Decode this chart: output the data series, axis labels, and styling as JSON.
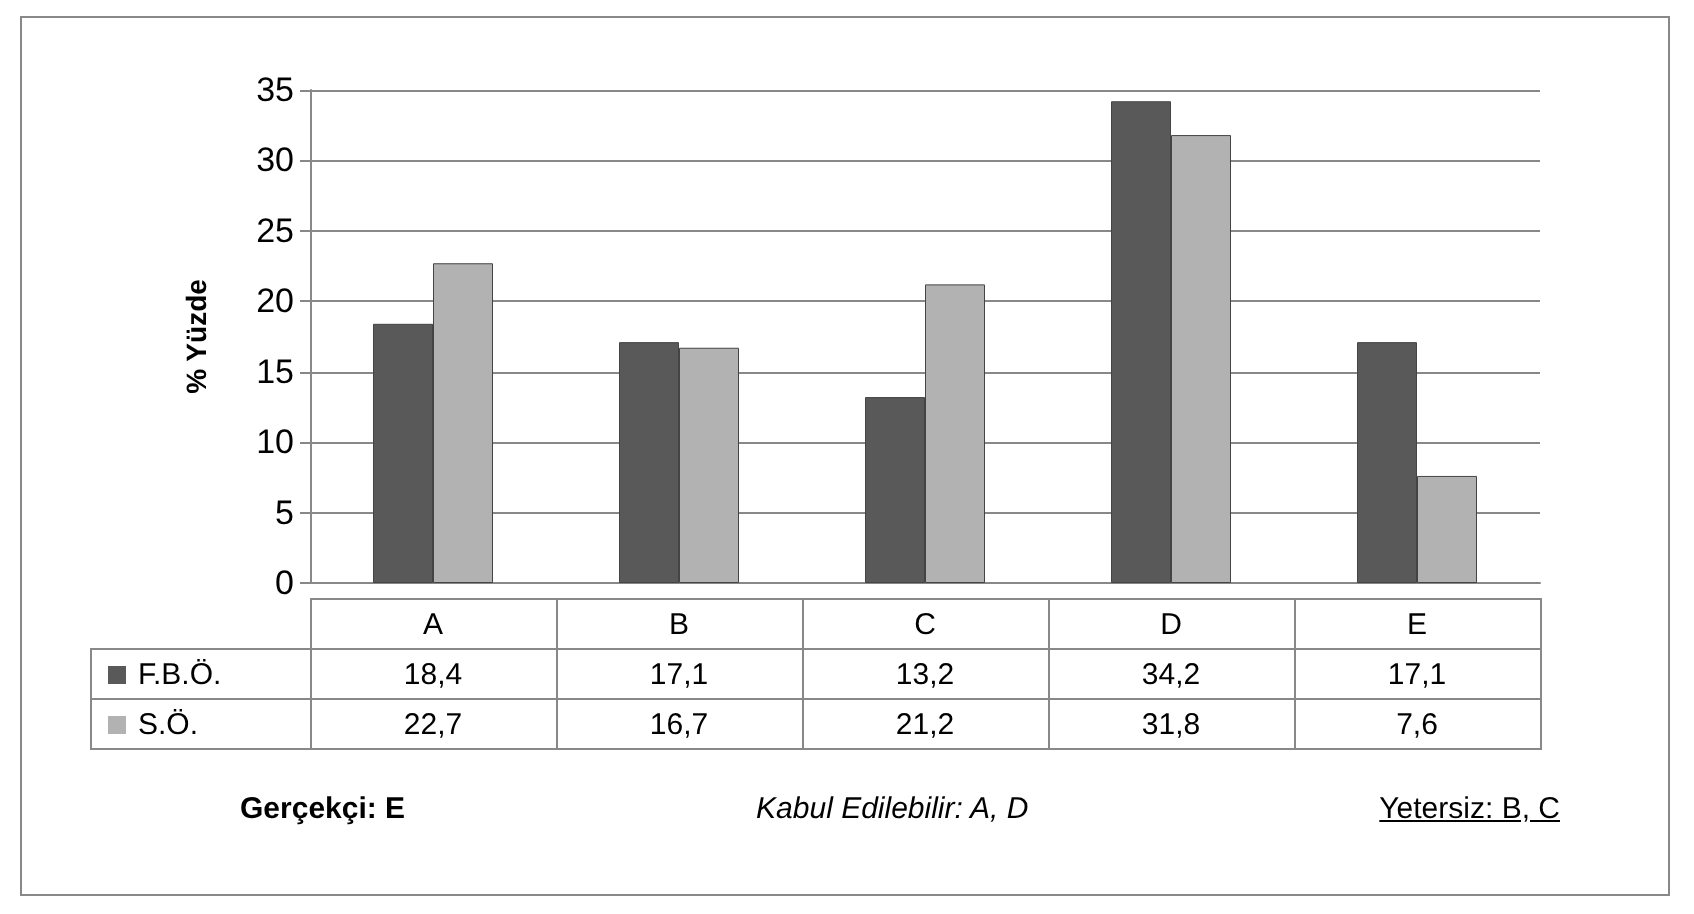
{
  "chart_data": {
    "type": "bar",
    "ylabel": "% Yüzde",
    "categories": [
      "A",
      "B",
      "C",
      "D",
      "E"
    ],
    "series": [
      {
        "name": "F.B.Ö.",
        "color": "#595959",
        "values": [
          18.4,
          17.1,
          13.2,
          34.2,
          17.1
        ],
        "value_labels": [
          "18,4",
          "17,1",
          "13,2",
          "34,2",
          "17,1"
        ]
      },
      {
        "name": "S.Ö.",
        "color": "#b2b2b2",
        "values": [
          22.7,
          16.7,
          21.2,
          31.8,
          7.6
        ],
        "value_labels": [
          "22,7",
          "16,7",
          "21,2",
          "31,8",
          "7,6"
        ]
      }
    ],
    "ylim": [
      0,
      35
    ],
    "yticks": [
      0,
      5,
      10,
      15,
      20,
      25,
      30,
      35
    ],
    "grid": "y",
    "legend": "bottom",
    "annotations": [
      "Gerçekçi: E",
      "Kabul Edilebilir: A, D",
      "Yetersiz: B, C"
    ]
  }
}
